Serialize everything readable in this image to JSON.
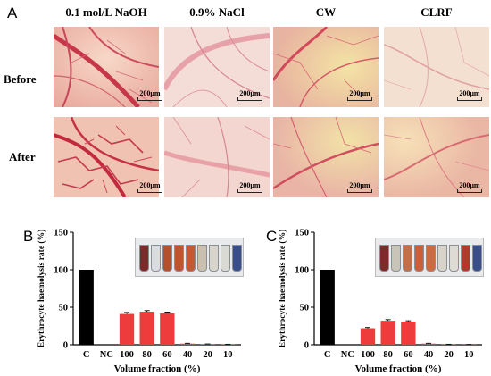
{
  "panel_a": {
    "letter": "A",
    "columns": [
      "0.1 mol/L NaOH",
      "0.9% NaCl",
      "CW",
      "CLRF"
    ],
    "rows": [
      "Before",
      "After"
    ],
    "scale_label": "200μm"
  },
  "chart_data": [
    {
      "panel": "B",
      "type": "bar",
      "categories": [
        "C",
        "NC",
        "100",
        "80",
        "60",
        "40",
        "20",
        "10"
      ],
      "values": [
        100,
        0,
        41,
        44,
        42,
        1.5,
        0.8,
        0.5
      ],
      "errors": [
        0,
        0,
        2,
        1.5,
        1.5,
        0.5,
        0.3,
        0.2
      ],
      "colors": [
        "#000000",
        "#ee3b3b",
        "#ee3b3b",
        "#ee3b3b",
        "#ee3b3b",
        "#ee3b3b",
        "#ee3b3b",
        "#ee3b3b"
      ],
      "xlabel": "Volume fraction (%)",
      "ylabel": "Erythrocyte haemolysis rate (%)",
      "ylim": [
        0,
        150
      ],
      "yticks": [
        "0",
        "50",
        "100",
        "150"
      ]
    },
    {
      "panel": "C",
      "type": "bar",
      "categories": [
        "C",
        "NC",
        "100",
        "80",
        "60",
        "40",
        "20",
        "10"
      ],
      "values": [
        100,
        0,
        22,
        32,
        31,
        1.5,
        0.5,
        0.3
      ],
      "errors": [
        0,
        0,
        1,
        1.5,
        1,
        0.5,
        0.2,
        0.1
      ],
      "colors": [
        "#000000",
        "#ee3b3b",
        "#ee3b3b",
        "#ee3b3b",
        "#ee3b3b",
        "#ee3b3b",
        "#ee3b3b",
        "#ee3b3b"
      ],
      "xlabel": "Volume fraction (%)",
      "ylabel": "Erythrocyte haemolysis rate (%)",
      "ylim": [
        0,
        150
      ],
      "yticks": [
        "0",
        "50",
        "100",
        "150"
      ]
    }
  ]
}
